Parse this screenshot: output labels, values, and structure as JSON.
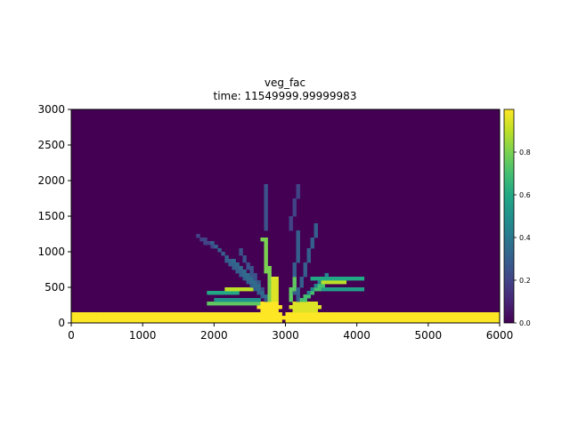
{
  "chart_data": [
    {
      "type": "heatmap",
      "title": "veg_fac",
      "subtitle": "time: 11549999.99999983",
      "xlabel": "",
      "ylabel": "",
      "xlim": [
        0,
        6000
      ],
      "ylim": [
        0,
        3000
      ],
      "x_ticks": [
        "0",
        "1000",
        "2000",
        "3000",
        "4000",
        "5000",
        "6000"
      ],
      "y_ticks": [
        "0",
        "500",
        "1000",
        "1500",
        "2000",
        "2500",
        "3000"
      ],
      "grid": false,
      "colormap": "viridis",
      "background_value": 0.0,
      "cell_size": 50,
      "description_of_field": "vegetation fraction; value 1.0 along the coastal strip y=0..150 on both sides of a channel at x≈2900..3050; vegetated levees along distributary channels fanning out between x≈1700 and x≈4050, y≈150..1950",
      "segments": [
        {
          "from": [
            0,
            75
          ],
          "to": [
            2900,
            75
          ],
          "value": 1.0,
          "width": 150
        },
        {
          "from": [
            3050,
            75
          ],
          "to": [
            6000,
            75
          ],
          "value": 1.0,
          "width": 150
        },
        {
          "from": [
            2650,
            225
          ],
          "to": [
            2900,
            225
          ],
          "value": 1.0,
          "width": 100
        },
        {
          "from": [
            3100,
            225
          ],
          "to": [
            3450,
            225
          ],
          "value": 0.95,
          "width": 100
        },
        {
          "from": [
            1950,
            275
          ],
          "to": [
            2650,
            275
          ],
          "value": 0.75,
          "width": 50
        },
        {
          "from": [
            2050,
            325
          ],
          "to": [
            2600,
            325
          ],
          "value": 0.5,
          "width": 50
        },
        {
          "from": [
            1950,
            425
          ],
          "to": [
            2300,
            425
          ],
          "value": 0.6,
          "width": 50
        },
        {
          "from": [
            2200,
            475
          ],
          "to": [
            2500,
            475
          ],
          "value": 0.9,
          "width": 50
        },
        {
          "from": [
            3450,
            475
          ],
          "to": [
            4050,
            475
          ],
          "value": 0.55,
          "width": 50
        },
        {
          "from": [
            3400,
            625
          ],
          "to": [
            4050,
            625
          ],
          "value": 0.6,
          "width": 50
        },
        {
          "from": [
            3550,
            575
          ],
          "to": [
            3800,
            575
          ],
          "value": 0.9,
          "width": 50
        },
        {
          "from": [
            2800,
            300
          ],
          "to": [
            2700,
            1200
          ],
          "value": 0.8,
          "width": 60
        },
        {
          "from": [
            2850,
            300
          ],
          "to": [
            2850,
            650
          ],
          "value": 0.95,
          "width": 60
        },
        {
          "from": [
            2800,
            300
          ],
          "to": [
            2250,
            900
          ],
          "value": 0.35,
          "width": 50
        },
        {
          "from": [
            2700,
            350
          ],
          "to": [
            1950,
            1150
          ],
          "value": 0.3,
          "width": 50
        },
        {
          "from": [
            2750,
            300
          ],
          "to": [
            2350,
            1050
          ],
          "value": 0.25,
          "width": 50
        },
        {
          "from": [
            3050,
            300
          ],
          "to": [
            3150,
            650
          ],
          "value": 0.75,
          "width": 60
        },
        {
          "from": [
            3100,
            400
          ],
          "to": [
            3200,
            1300
          ],
          "value": 0.3,
          "width": 50
        },
        {
          "from": [
            3150,
            300
          ],
          "to": [
            3450,
            1400
          ],
          "value": 0.3,
          "width": 50
        },
        {
          "from": [
            3200,
            300
          ],
          "to": [
            3550,
            550
          ],
          "value": 0.7,
          "width": 50
        },
        {
          "from": [
            3250,
            350
          ],
          "to": [
            3600,
            700
          ],
          "value": 0.45,
          "width": 50
        },
        {
          "from": [
            2700,
            1300
          ],
          "to": [
            2750,
            1950
          ],
          "value": 0.25,
          "width": 50
        },
        {
          "from": [
            3050,
            1300
          ],
          "to": [
            3200,
            1950
          ],
          "value": 0.2,
          "width": 50
        },
        {
          "from": [
            1750,
            1250
          ],
          "to": [
            2000,
            1050
          ],
          "value": 0.2,
          "width": 50
        }
      ],
      "colorbar": {
        "range": [
          0.0,
          1.0
        ],
        "ticks": [
          "0.0",
          "0.2",
          "0.4",
          "0.6",
          "0.8"
        ]
      }
    }
  ],
  "colors": {
    "viridis_low": "#440154",
    "viridis_mid": "#21918c",
    "viridis_high": "#fde725"
  }
}
